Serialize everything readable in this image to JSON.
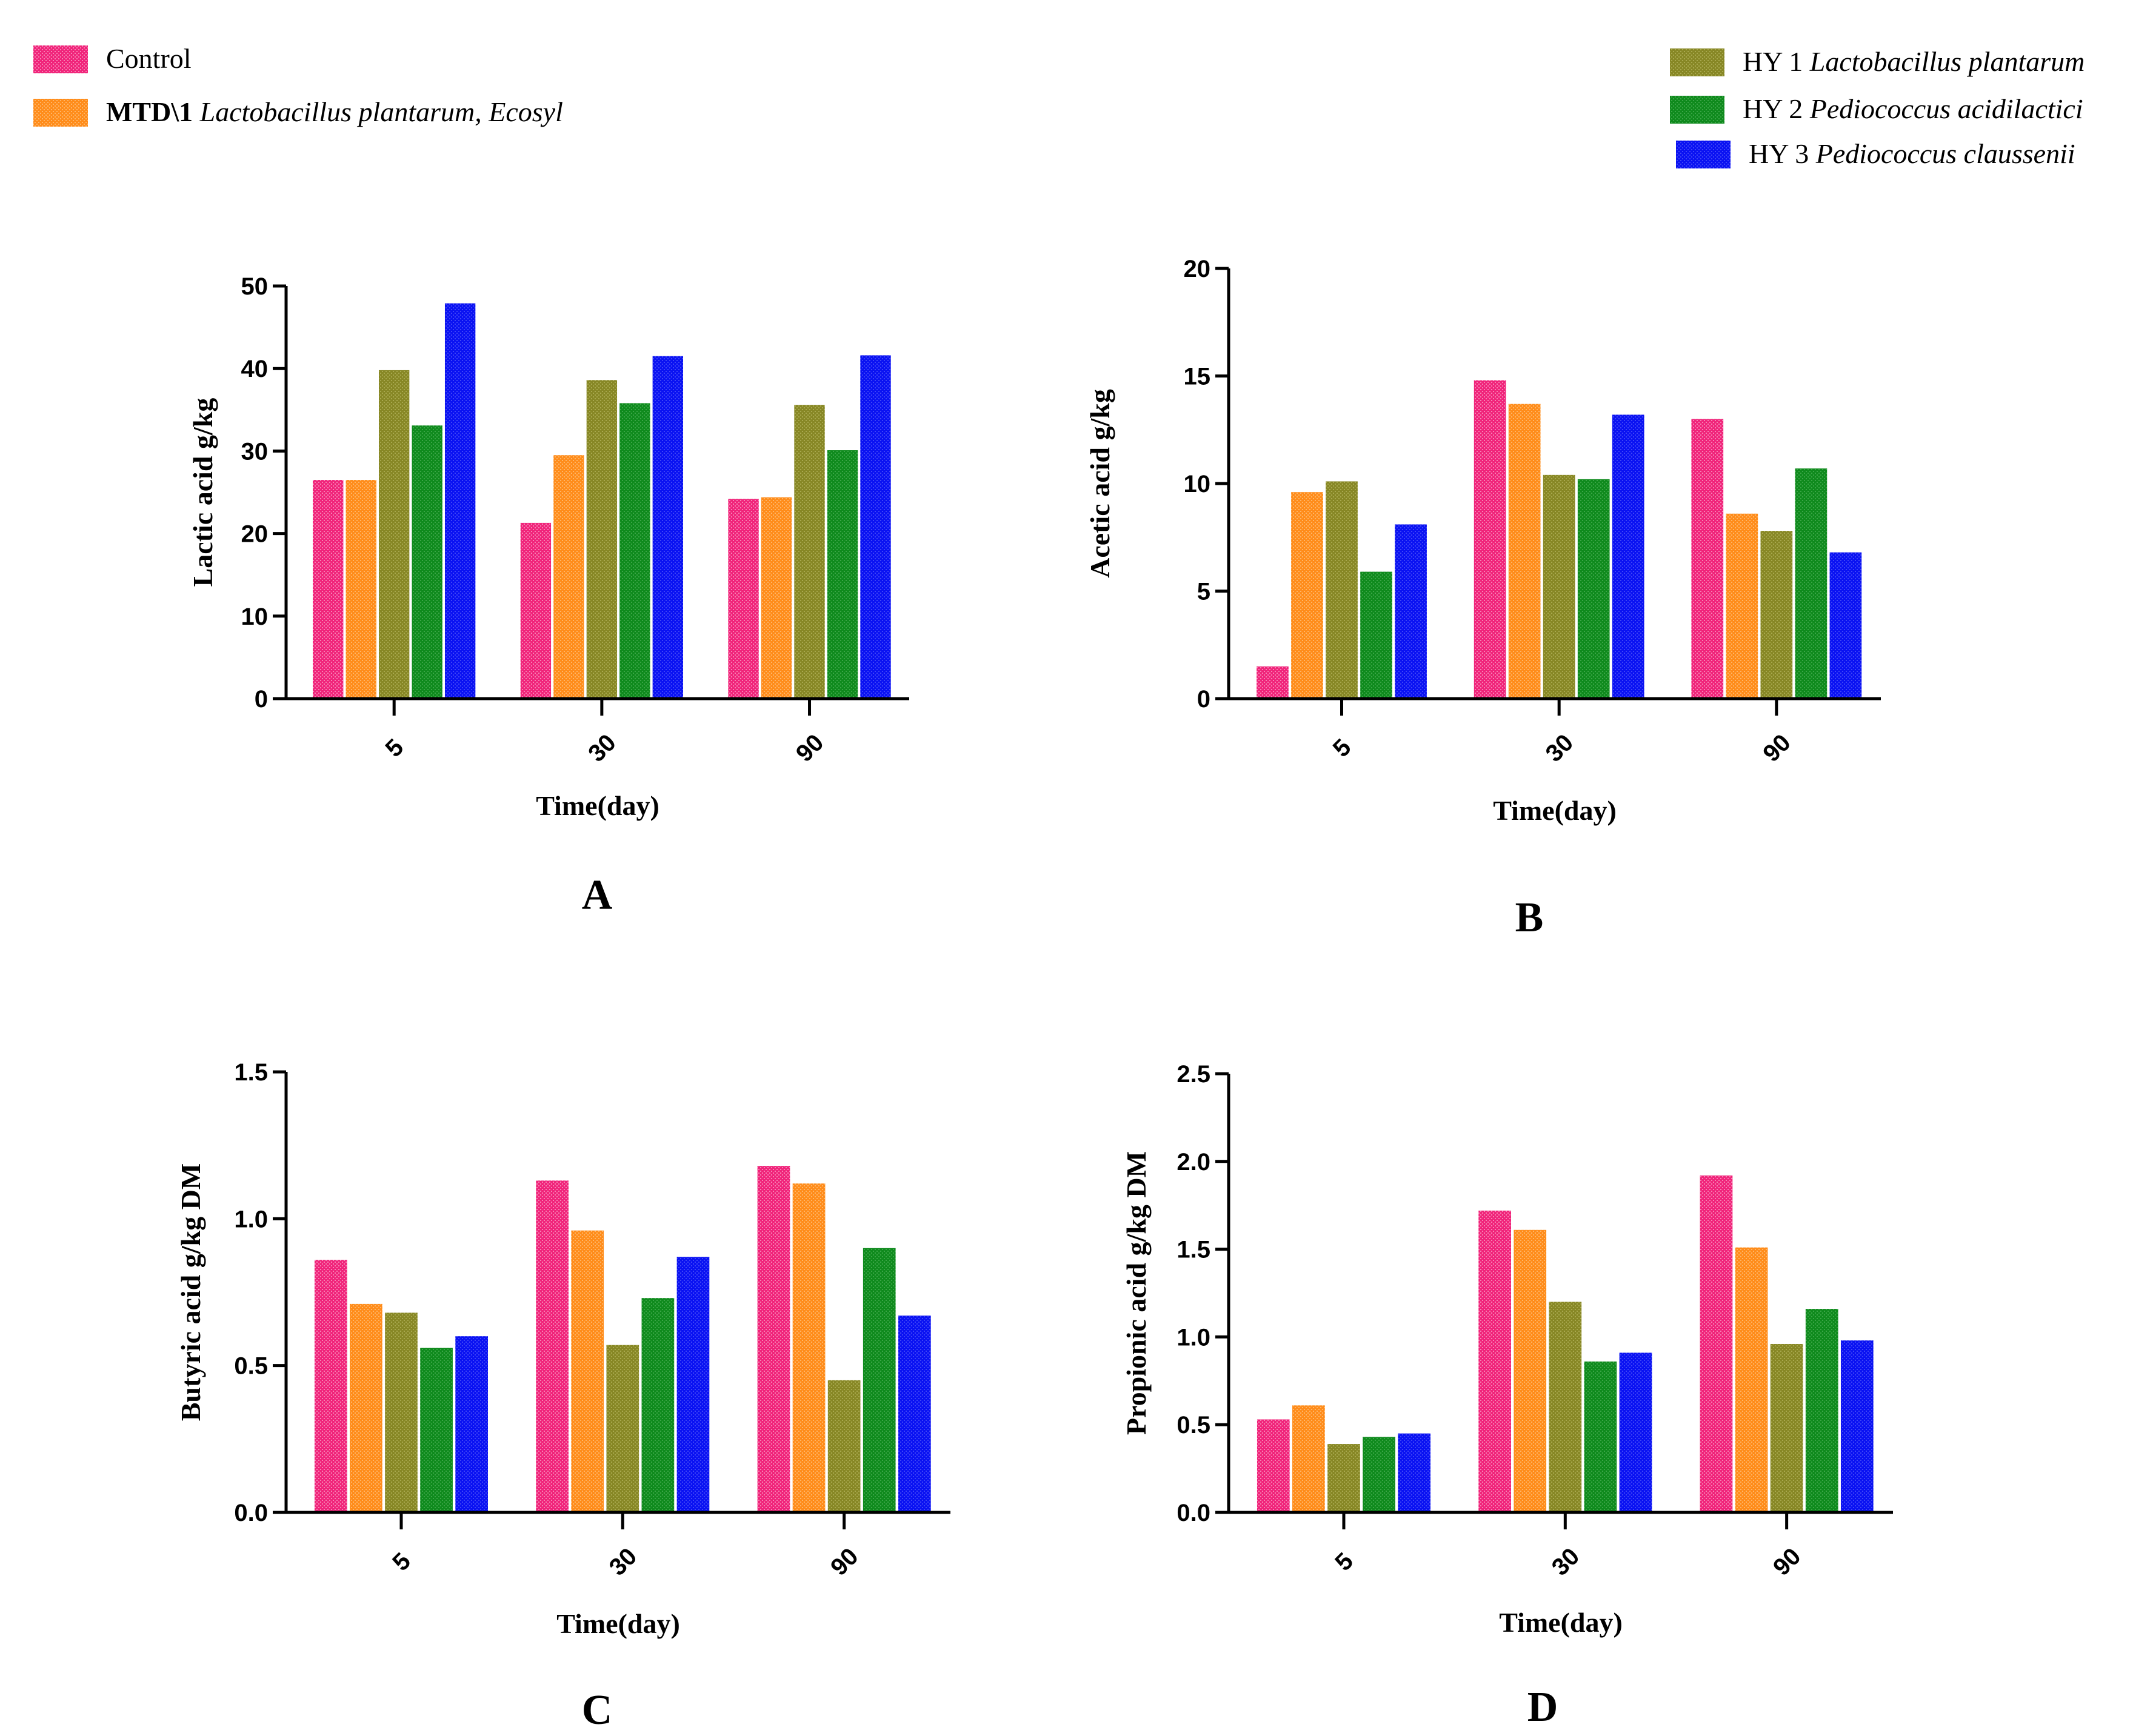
{
  "legend": {
    "items": [
      {
        "key": "control",
        "prefix": "Control",
        "italic": "",
        "color": "#f0247a"
      },
      {
        "key": "mtd",
        "prefix": "MTD\\1 ",
        "italic": "Lactobacillus plantarum, Ecosyl",
        "color": "#ff8c1a"
      },
      {
        "key": "hy1",
        "prefix": "HY 1 ",
        "italic": "Lactobacillus plantarum",
        "color": "#878725"
      },
      {
        "key": "hy2",
        "prefix": "HY 2 ",
        "italic": "Pediococcus acidilactici",
        "color": "#0f8a1d"
      },
      {
        "key": "hy3",
        "prefix": "HY 3 ",
        "italic": "Pediococcus claussenii",
        "color": "#0a12f2"
      }
    ]
  },
  "chart_data": [
    {
      "panel": "A",
      "type": "bar",
      "categories": [
        "5",
        "30",
        "90"
      ],
      "xlabel": "Time(day)",
      "ylabel": "Lactic acid g/kg",
      "ylim": [
        0,
        50
      ],
      "yticks": [
        "0",
        "10",
        "20",
        "30",
        "40",
        "50"
      ],
      "series": [
        {
          "name": "Control",
          "values": [
            26.5,
            21.3,
            24.2
          ]
        },
        {
          "name": "MTD\\1 Lactobacillus plantarum, Ecosyl",
          "values": [
            26.5,
            29.5,
            24.4
          ]
        },
        {
          "name": "HY 1 Lactobacillus plantarum",
          "values": [
            39.8,
            38.6,
            35.6
          ]
        },
        {
          "name": "HY 2 Pediococcus acidilactici",
          "values": [
            33.1,
            35.8,
            30.1
          ]
        },
        {
          "name": "HY 3 Pediococcus claussenii",
          "values": [
            47.9,
            41.5,
            41.6
          ]
        }
      ]
    },
    {
      "panel": "B",
      "type": "bar",
      "categories": [
        "5",
        "30",
        "90"
      ],
      "xlabel": "Time(day)",
      "ylabel": "Acetic acid g/kg",
      "ylim": [
        0,
        20
      ],
      "yticks": [
        "0",
        "5",
        "10",
        "15",
        "20"
      ],
      "series": [
        {
          "name": "Control",
          "values": [
            1.5,
            14.8,
            13.0
          ]
        },
        {
          "name": "MTD\\1 Lactobacillus plantarum, Ecosyl",
          "values": [
            9.6,
            13.7,
            8.6
          ]
        },
        {
          "name": "HY 1 Lactobacillus plantarum",
          "values": [
            10.1,
            10.4,
            7.8
          ]
        },
        {
          "name": "HY 2 Pediococcus acidilactici",
          "values": [
            5.9,
            10.2,
            10.7
          ]
        },
        {
          "name": "HY 3 Pediococcus claussenii",
          "values": [
            8.1,
            13.2,
            6.8
          ]
        }
      ]
    },
    {
      "panel": "C",
      "type": "bar",
      "categories": [
        "5",
        "30",
        "90"
      ],
      "xlabel": "Time(day)",
      "ylabel": "Butyric acid g/kg DM",
      "ylim": [
        0,
        1.5
      ],
      "yticks": [
        "0.0",
        "0.5",
        "1.0",
        "1.5"
      ],
      "series": [
        {
          "name": "Control",
          "values": [
            0.86,
            1.13,
            1.18
          ]
        },
        {
          "name": "MTD\\1 Lactobacillus plantarum, Ecosyl",
          "values": [
            0.71,
            0.96,
            1.12
          ]
        },
        {
          "name": "HY 1 Lactobacillus plantarum",
          "values": [
            0.68,
            0.57,
            0.45
          ]
        },
        {
          "name": "HY 2 Pediococcus acidilactici",
          "values": [
            0.56,
            0.73,
            0.9
          ]
        },
        {
          "name": "HY 3 Pediococcus claussenii",
          "values": [
            0.6,
            0.87,
            0.67
          ]
        }
      ]
    },
    {
      "panel": "D",
      "type": "bar",
      "categories": [
        "5",
        "30",
        "90"
      ],
      "xlabel": "Time(day)",
      "ylabel": "Propionic acid g/kg DM",
      "ylim": [
        0,
        2.5
      ],
      "yticks": [
        "0.0",
        "0.5",
        "1.0",
        "1.5",
        "2.0",
        "2.5"
      ],
      "series": [
        {
          "name": "Control",
          "values": [
            0.53,
            1.72,
            1.92
          ]
        },
        {
          "name": "MTD\\1 Lactobacillus plantarum, Ecosyl",
          "values": [
            0.61,
            1.61,
            1.51
          ]
        },
        {
          "name": "HY 1 Lactobacillus plantarum",
          "values": [
            0.39,
            1.2,
            0.96
          ]
        },
        {
          "name": "HY 2 Pediococcus acidilactici",
          "values": [
            0.43,
            0.86,
            1.16
          ]
        },
        {
          "name": "HY 3 Pediococcus claussenii",
          "values": [
            0.45,
            0.91,
            0.98
          ]
        }
      ]
    }
  ]
}
